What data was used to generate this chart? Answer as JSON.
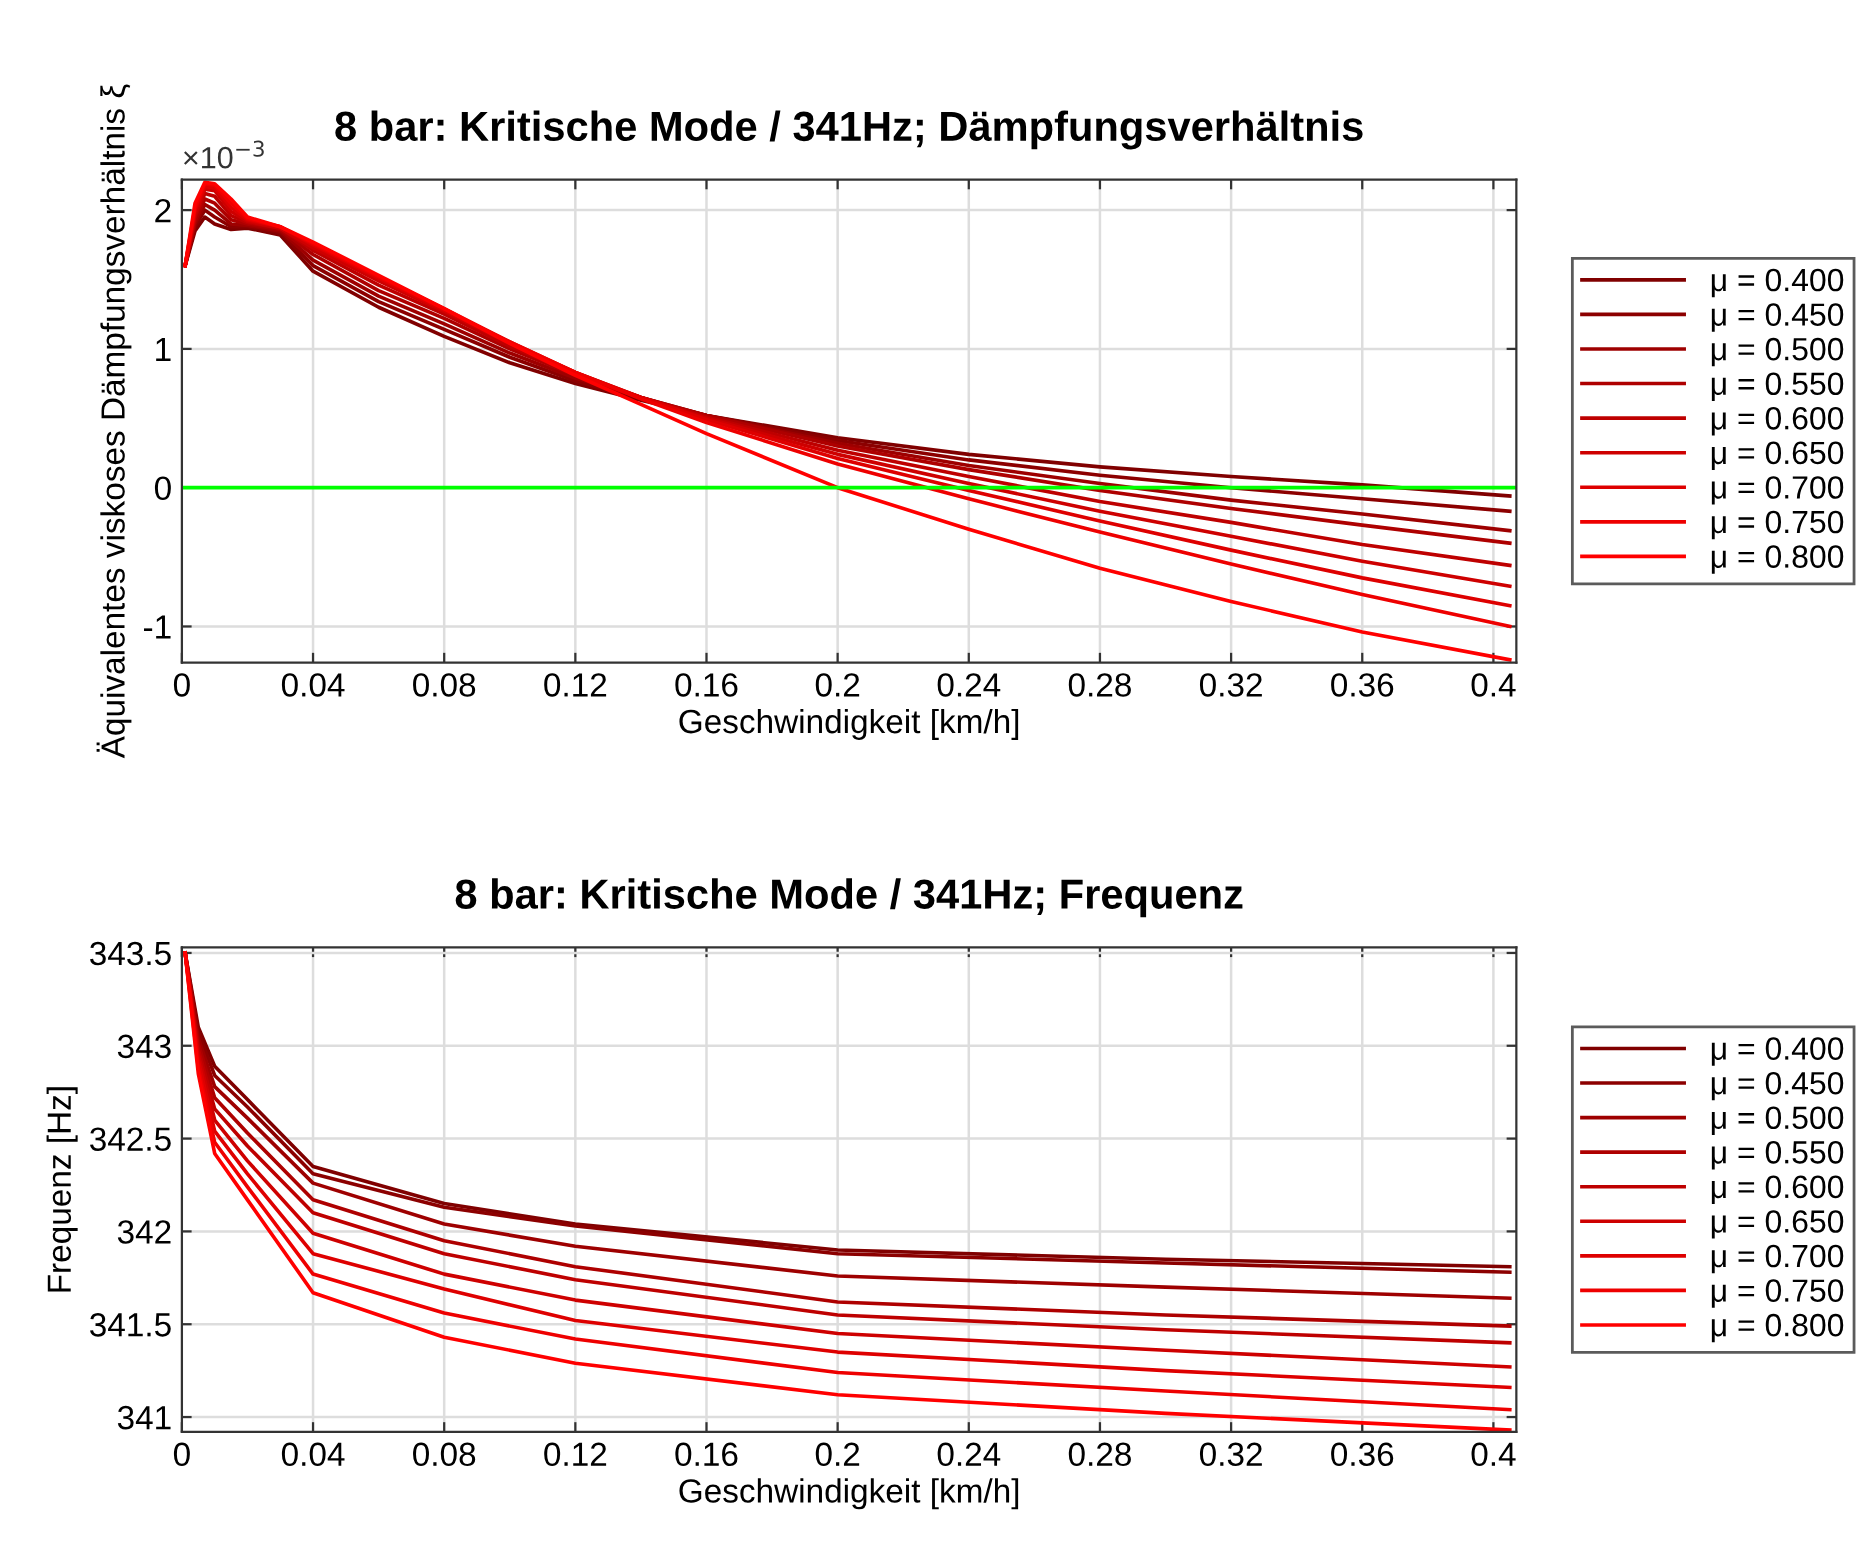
{
  "chart_data": [
    {
      "type": "line",
      "title": "8 bar: Kritische Mode / 341Hz; Dämpfungsverhältnis",
      "xlabel": "Geschwindigkeit [km/h]",
      "ylabel": "Äquivalentes viskoses Dämpfungsverhältnis ξ",
      "annotations": [
        "×10$^{−3}$"
      ],
      "x": [
        0.001,
        0.004,
        0.007,
        0.01,
        0.015,
        0.02,
        0.03,
        0.04,
        0.06,
        0.08,
        0.1,
        0.12,
        0.14,
        0.16,
        0.2,
        0.24,
        0.28,
        0.32,
        0.36,
        0.405
      ],
      "xlim": [
        0,
        0.407
      ],
      "xticks": [
        0,
        0.04,
        0.08,
        0.12,
        0.16,
        0.2,
        0.24,
        0.28,
        0.32,
        0.36,
        0.4
      ],
      "ylim": [
        -1.26,
        2.22
      ],
      "yticks": [
        -1,
        0,
        1,
        2
      ],
      "grid": true,
      "legend": "right",
      "line_style": "solid",
      "marker": "none",
      "ref_lines": [
        {
          "axis": "y",
          "value": 0,
          "color": "#00ff00"
        }
      ],
      "series": [
        {
          "name": "μ = 0.400",
          "color": "#800000",
          "values": [
            1.6,
            1.85,
            1.95,
            1.9,
            1.86,
            1.87,
            1.82,
            1.56,
            1.3,
            1.09,
            0.9,
            0.75,
            0.63,
            0.52,
            0.36,
            0.24,
            0.15,
            0.08,
            0.02,
            -0.06
          ]
        },
        {
          "name": "μ = 0.450",
          "color": "#8c0000",
          "values": [
            1.6,
            1.88,
            2.0,
            1.95,
            1.88,
            1.88,
            1.84,
            1.6,
            1.34,
            1.14,
            0.94,
            0.77,
            0.64,
            0.52,
            0.34,
            0.2,
            0.09,
            0.0,
            -0.08,
            -0.17
          ]
        },
        {
          "name": "μ = 0.500",
          "color": "#9e0000",
          "values": [
            1.6,
            1.9,
            2.04,
            2.0,
            1.9,
            1.89,
            1.85,
            1.64,
            1.38,
            1.18,
            0.97,
            0.79,
            0.65,
            0.52,
            0.32,
            0.16,
            0.03,
            -0.09,
            -0.19,
            -0.31
          ]
        },
        {
          "name": "μ = 0.550",
          "color": "#ae0000",
          "values": [
            1.6,
            1.92,
            2.08,
            2.05,
            1.93,
            1.9,
            1.86,
            1.68,
            1.42,
            1.22,
            1.0,
            0.81,
            0.65,
            0.52,
            0.3,
            0.13,
            -0.02,
            -0.15,
            -0.27,
            -0.4
          ]
        },
        {
          "name": "μ = 0.600",
          "color": "#be0000",
          "values": [
            1.6,
            1.95,
            2.12,
            2.1,
            1.96,
            1.91,
            1.87,
            1.71,
            1.46,
            1.25,
            1.02,
            0.82,
            0.65,
            0.51,
            0.27,
            0.08,
            -0.1,
            -0.25,
            -0.41,
            -0.56
          ]
        },
        {
          "name": "μ = 0.650",
          "color": "#ce0000",
          "values": [
            1.6,
            1.97,
            2.15,
            2.14,
            1.99,
            1.92,
            1.87,
            1.73,
            1.49,
            1.27,
            1.04,
            0.83,
            0.65,
            0.5,
            0.24,
            0.03,
            -0.17,
            -0.35,
            -0.53,
            -0.71
          ]
        },
        {
          "name": "μ = 0.700",
          "color": "#de0000",
          "values": [
            1.6,
            2.0,
            2.17,
            2.16,
            2.02,
            1.93,
            1.88,
            1.75,
            1.51,
            1.28,
            1.05,
            0.83,
            0.65,
            0.49,
            0.21,
            -0.02,
            -0.24,
            -0.45,
            -0.65,
            -0.85
          ]
        },
        {
          "name": "μ = 0.750",
          "color": "#ee0000",
          "values": [
            1.6,
            2.02,
            2.19,
            2.18,
            2.05,
            1.94,
            1.88,
            1.76,
            1.52,
            1.29,
            1.05,
            0.83,
            0.64,
            0.47,
            0.17,
            -0.08,
            -0.32,
            -0.55,
            -0.77,
            -1.0
          ]
        },
        {
          "name": "μ = 0.800",
          "color": "#ff0000",
          "values": [
            1.6,
            2.05,
            2.2,
            2.19,
            2.08,
            1.95,
            1.88,
            1.77,
            1.53,
            1.29,
            1.04,
            0.81,
            0.6,
            0.39,
            0.0,
            -0.3,
            -0.58,
            -0.82,
            -1.04,
            -1.24
          ]
        }
      ]
    },
    {
      "type": "line",
      "title": "8 bar: Kritische Mode / 341Hz; Frequenz",
      "xlabel": "Geschwindigkeit [km/h]",
      "ylabel": "Frequenz [Hz]",
      "x": [
        0.001,
        0.005,
        0.01,
        0.02,
        0.04,
        0.08,
        0.12,
        0.2,
        0.3,
        0.405
      ],
      "xlim": [
        0,
        0.407
      ],
      "xticks": [
        0,
        0.04,
        0.08,
        0.12,
        0.16,
        0.2,
        0.24,
        0.28,
        0.32,
        0.36,
        0.4
      ],
      "ylim": [
        340.92,
        343.53
      ],
      "yticks": [
        341,
        341.5,
        342,
        342.5,
        343,
        343.5
      ],
      "grid": true,
      "legend": "right",
      "line_style": "solid",
      "marker": "none",
      "series": [
        {
          "name": "μ = 0.400",
          "color": "#800000",
          "values": [
            343.5,
            343.1,
            342.89,
            342.71,
            342.35,
            342.15,
            342.04,
            341.9,
            341.85,
            341.81
          ]
        },
        {
          "name": "μ = 0.450",
          "color": "#8c0000",
          "values": [
            343.5,
            343.07,
            342.84,
            342.67,
            342.31,
            342.13,
            342.03,
            341.88,
            341.83,
            341.78
          ]
        },
        {
          "name": "μ = 0.500",
          "color": "#9e0000",
          "values": [
            343.5,
            343.04,
            342.78,
            342.61,
            342.26,
            342.04,
            341.92,
            341.76,
            341.7,
            341.64
          ]
        },
        {
          "name": "μ = 0.550",
          "color": "#ae0000",
          "values": [
            343.5,
            343.01,
            342.72,
            342.53,
            342.17,
            341.95,
            341.81,
            341.62,
            341.55,
            341.49
          ]
        },
        {
          "name": "μ = 0.600",
          "color": "#be0000",
          "values": [
            343.5,
            342.98,
            342.66,
            342.46,
            342.1,
            341.88,
            341.74,
            341.55,
            341.47,
            341.4
          ]
        },
        {
          "name": "μ = 0.650",
          "color": "#ce0000",
          "values": [
            343.5,
            342.95,
            342.6,
            342.38,
            341.99,
            341.77,
            341.63,
            341.45,
            341.36,
            341.27
          ]
        },
        {
          "name": "μ = 0.700",
          "color": "#de0000",
          "values": [
            343.5,
            342.92,
            342.54,
            342.31,
            341.88,
            341.69,
            341.52,
            341.35,
            341.25,
            341.16
          ]
        },
        {
          "name": "μ = 0.750",
          "color": "#ee0000",
          "values": [
            343.5,
            342.88,
            342.48,
            342.24,
            341.77,
            341.56,
            341.42,
            341.24,
            341.14,
            341.04
          ]
        },
        {
          "name": "μ = 0.800",
          "color": "#ff0000",
          "values": [
            343.5,
            342.85,
            342.42,
            342.17,
            341.67,
            341.43,
            341.29,
            341.12,
            341.02,
            340.93
          ]
        }
      ]
    }
  ]
}
